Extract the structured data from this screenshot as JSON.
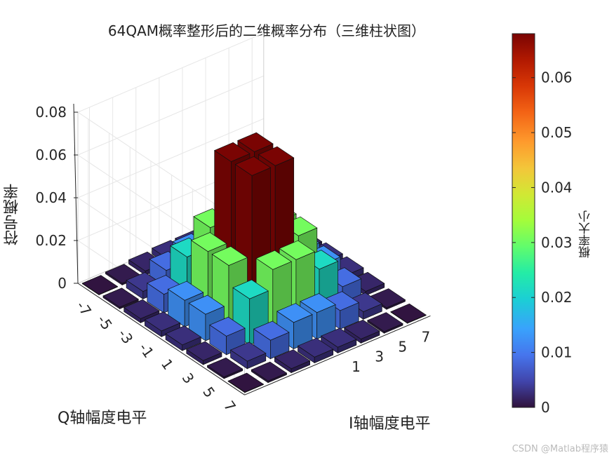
{
  "chart_data": {
    "type": "bar3d",
    "title": "64QAM概率整形后的二维概率分布（三维柱状图）",
    "xlabel": "I轴幅度电平",
    "ylabel": "Q轴幅度电平",
    "zlabel": "符号概率",
    "colorbar_label": "概率大小",
    "colormap": "turbo",
    "watermark": "CSDN @Matlab程序猿",
    "i_levels": [
      -7,
      -5,
      -3,
      -1,
      1,
      3,
      5,
      7
    ],
    "q_levels": [
      -7,
      -5,
      -3,
      -1,
      1,
      3,
      5,
      7
    ],
    "i_tick_labels": [
      "1",
      "3",
      "5",
      "7"
    ],
    "q_tick_labels": [
      "-7",
      "-5",
      "-3",
      "-1",
      "1",
      "3",
      "5",
      "7"
    ],
    "z_tick_labels": [
      "0",
      "0.02",
      "0.04",
      "0.06",
      "0.08"
    ],
    "zlim": [
      0,
      0.08
    ],
    "colorbar_ticks": [
      "0",
      "0.01",
      "0.02",
      "0.03",
      "0.04",
      "0.05",
      "0.06"
    ],
    "colorbar_range": [
      0,
      0.068
    ],
    "values": [
      [
        0.0002,
        0.0008,
        0.0019,
        0.0027,
        0.0027,
        0.0019,
        0.0008,
        0.0002
      ],
      [
        0.0008,
        0.0035,
        0.0087,
        0.0124,
        0.0124,
        0.0087,
        0.0035,
        0.0008
      ],
      [
        0.0019,
        0.0087,
        0.0215,
        0.0306,
        0.0306,
        0.0215,
        0.0087,
        0.0019
      ],
      [
        0.0027,
        0.0124,
        0.0306,
        0.068,
        0.068,
        0.0306,
        0.0124,
        0.0027
      ],
      [
        0.0027,
        0.0124,
        0.0306,
        0.068,
        0.068,
        0.0306,
        0.0124,
        0.0027
      ],
      [
        0.0019,
        0.0087,
        0.0215,
        0.0306,
        0.0306,
        0.0215,
        0.0087,
        0.0019
      ],
      [
        0.0008,
        0.0035,
        0.0087,
        0.0124,
        0.0124,
        0.0087,
        0.0035,
        0.0008
      ],
      [
        0.0002,
        0.0008,
        0.0019,
        0.0027,
        0.0027,
        0.0019,
        0.0008,
        0.0002
      ]
    ]
  }
}
